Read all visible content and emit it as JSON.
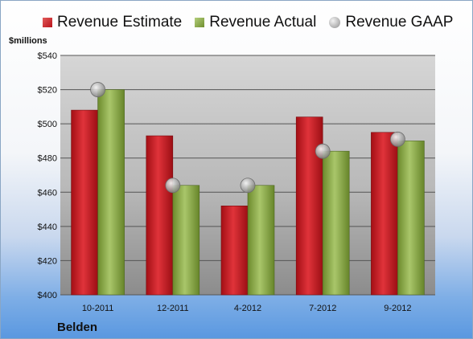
{
  "legend": {
    "estimate": "Revenue Estimate",
    "actual": "Revenue Actual",
    "gaap": "Revenue GAAP"
  },
  "unit_label": "$millions",
  "company": "Belden",
  "colors": {
    "estimate": "#c0181f",
    "actual": "#8aa84a",
    "gaap": "#b5b5b5",
    "plot_bg": "#d2d2d2"
  },
  "chart_data": {
    "type": "bar",
    "categories": [
      "10-2011",
      "12-2011",
      "4-2012",
      "7-2012",
      "9-2012"
    ],
    "series": [
      {
        "name": "Revenue Estimate",
        "values": [
          508,
          493,
          452,
          504,
          495
        ]
      },
      {
        "name": "Revenue Actual",
        "values": [
          520,
          464,
          464,
          484,
          490
        ]
      },
      {
        "name": "Revenue GAAP",
        "values": [
          520,
          464,
          464,
          484,
          491
        ]
      }
    ],
    "ylim": [
      400,
      540
    ],
    "yticks": [
      "$400",
      "$420",
      "$440",
      "$460",
      "$480",
      "$500",
      "$520",
      "$540"
    ],
    "ytick_values": [
      400,
      420,
      440,
      460,
      480,
      500,
      520,
      540
    ],
    "grid": true,
    "legend_position": "top"
  }
}
